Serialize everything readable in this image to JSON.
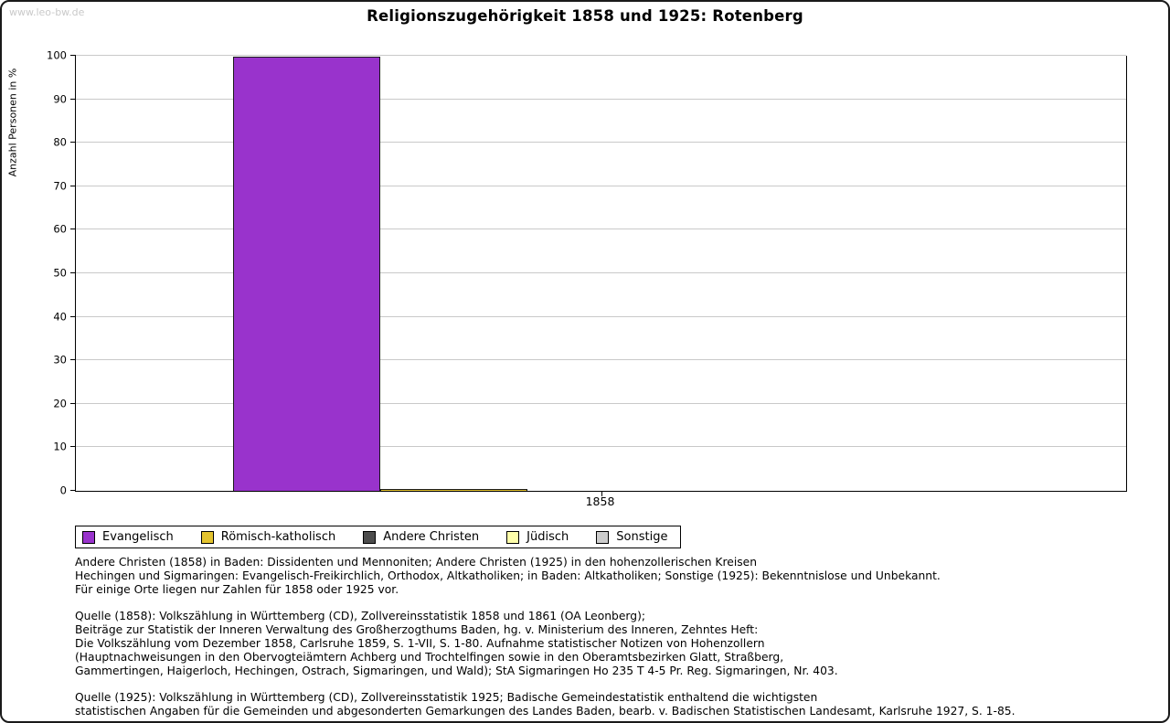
{
  "watermark": "www.leo-bw.de",
  "chart_data": {
    "type": "bar",
    "title": "Religionszugehörigkeit 1858 und 1925: Rotenberg",
    "xlabel": "",
    "ylabel": "Anzahl Personen in %",
    "ylim": [
      0,
      100
    ],
    "yticks": [
      0,
      10,
      20,
      30,
      40,
      50,
      60,
      70,
      80,
      90,
      100
    ],
    "grid": true,
    "legend_position": "bottom",
    "categories": [
      "1858"
    ],
    "series": [
      {
        "name": "Evangelisch",
        "color": "#9933cc",
        "values": [
          99.7
        ]
      },
      {
        "name": "Römisch-katholisch",
        "color": "#e3c32e",
        "values": [
          0.4
        ]
      },
      {
        "name": "Andere Christen",
        "color": "#4d4d4d",
        "values": [
          0
        ]
      },
      {
        "name": "Jüdisch",
        "color": "#ffffaa",
        "values": [
          0
        ]
      },
      {
        "name": "Sonstige",
        "color": "#cccccc",
        "values": [
          0
        ]
      }
    ]
  },
  "notes": {
    "para1": "Andere Christen (1858) in Baden: Dissidenten und Mennoniten; Andere Christen (1925) in den hohenzollerischen Kreisen\nHechingen und Sigmaringen: Evangelisch-Freikirchlich, Orthodox, Altkatholiken; in Baden: Altkatholiken; Sonstige (1925): Bekenntnislose und Unbekannt.\nFür einige Orte liegen nur Zahlen für 1858 oder 1925 vor.",
    "para2": "Quelle (1858): Volkszählung in Württemberg (CD), Zollvereinsstatistik 1858 und 1861 (OA Leonberg);\nBeiträge zur Statistik der Inneren Verwaltung des Großherzogthums Baden, hg. v. Ministerium des Inneren, Zehntes Heft:\nDie Volkszählung vom Dezember 1858, Carlsruhe 1859, S. 1-VII, S. 1-80. Aufnahme statistischer Notizen von Hohenzollern\n(Hauptnachweisungen in den Obervogteiämtern Achberg und Trochtelfingen sowie in den Oberamtsbezirken Glatt, Straßberg,\nGammertingen, Haigerloch, Hechingen, Ostrach, Sigmaringen, und Wald); StA Sigmaringen Ho 235 T 4-5 Pr. Reg. Sigmaringen, Nr. 403.",
    "para3": "Quelle (1925): Volkszählung in Württemberg (CD), Zollvereinsstatistik 1925; Badische Gemeindestatistik enthaltend die wichtigsten\nstatistischen Angaben für die Gemeinden und abgesonderten Gemarkungen des Landes Baden, bearb. v. Badischen Statistischen Landesamt, Karlsruhe 1927, S. 1-85."
  }
}
